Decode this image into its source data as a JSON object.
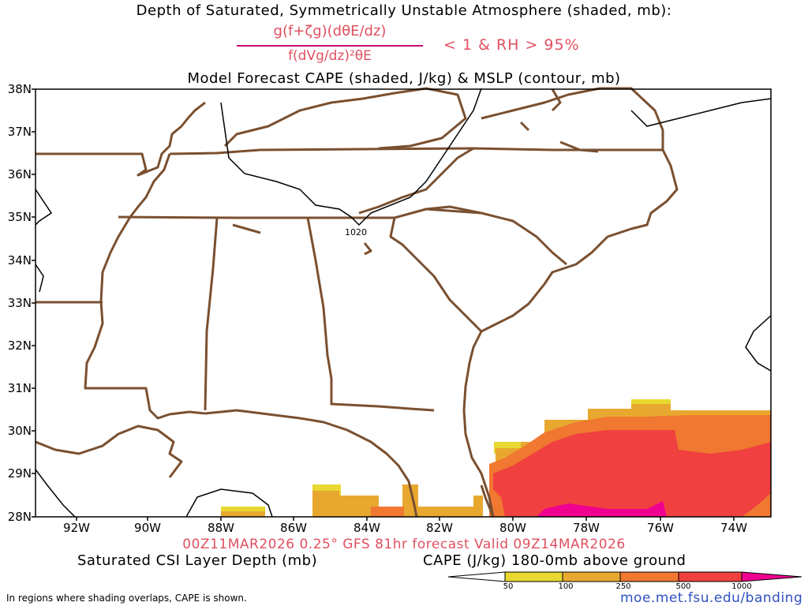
{
  "header": {
    "title_line1": "Depth of Saturated, Symmetrically Unstable Atmosphere (shaded, mb):",
    "formula_numerator": "g(f+ζg)(dθE/dz)",
    "formula_denominator": "f(dVg/dz)²θE",
    "condition": "< 1 & RH > 95%",
    "title_line2": "Model Forecast CAPE (shaded, J/kg) & MSLP (contour, mb)"
  },
  "map": {
    "lat_labels": [
      "38N",
      "37N",
      "36N",
      "35N",
      "34N",
      "33N",
      "32N",
      "31N",
      "30N",
      "29N",
      "28N"
    ],
    "lon_labels": [
      "92W",
      "90W",
      "88W",
      "86W",
      "84W",
      "82W",
      "80W",
      "78W",
      "76W",
      "74W"
    ],
    "isobar_label": "1020",
    "colors": {
      "boundary": "#7a5030",
      "isobar": "#000000"
    }
  },
  "footer": {
    "run_info": "00Z11MAR2026 0.25° GFS 81hr forecast Valid 09Z14MAR2026",
    "csi_label": "Saturated CSI Layer Depth (mb)",
    "cape_label": "CAPE (J/kg) 180-0mb above ground",
    "footnote": "In regions where shading overlaps, CAPE is shown.",
    "url": "moe.met.fsu.edu/banding"
  },
  "colorbar": {
    "ticks": [
      "50",
      "100",
      "250",
      "500",
      "1000"
    ],
    "colors": [
      "#ffffff",
      "#e8d830",
      "#e8a830",
      "#f07830",
      "#f04040",
      "#f00090"
    ]
  }
}
